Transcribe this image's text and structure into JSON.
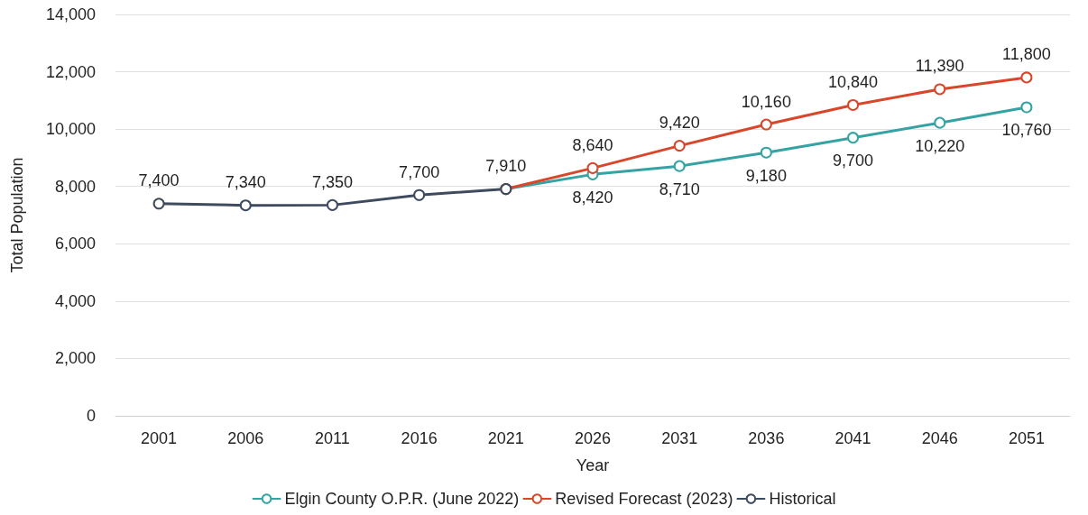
{
  "chart_data": {
    "type": "line",
    "xlabel": "Year",
    "ylabel": "Total Population",
    "categories": [
      "2001",
      "2006",
      "2011",
      "2016",
      "2021",
      "2026",
      "2031",
      "2036",
      "2041",
      "2046",
      "2051"
    ],
    "series": [
      {
        "name": "Elgin County O.P.R. (June 2022)",
        "color": "#35a3a3",
        "values": [
          null,
          null,
          null,
          null,
          7910,
          8420,
          8710,
          9180,
          9700,
          10220,
          10760
        ],
        "value_labels": [
          null,
          null,
          null,
          null,
          null,
          "8,420",
          "8,710",
          "9,180",
          "9,700",
          "10,220",
          "10,760"
        ]
      },
      {
        "name": "Revised Forecast (2023)",
        "color": "#d9472b",
        "values": [
          null,
          null,
          null,
          null,
          7910,
          8640,
          9420,
          10160,
          10840,
          11390,
          11800
        ],
        "value_labels": [
          null,
          null,
          null,
          null,
          null,
          "8,640",
          "9,420",
          "10,160",
          "10,840",
          "11,390",
          "11,800"
        ]
      },
      {
        "name": "Historical",
        "color": "#3e4a5e",
        "values": [
          7400,
          7340,
          7350,
          7700,
          7910,
          null,
          null,
          null,
          null,
          null,
          null
        ],
        "value_labels": [
          "7,400",
          "7,340",
          "7,350",
          "7,700",
          "7,910",
          null,
          null,
          null,
          null,
          null,
          null
        ]
      }
    ],
    "ylim": [
      0,
      14000
    ],
    "yticks": [
      {
        "value": 0,
        "label": "0"
      },
      {
        "value": 2000,
        "label": "2,000"
      },
      {
        "value": 4000,
        "label": "4,000"
      },
      {
        "value": 6000,
        "label": "6,000"
      },
      {
        "value": 8000,
        "label": "8,000"
      },
      {
        "value": 10000,
        "label": "10,000"
      },
      {
        "value": 12000,
        "label": "12,000"
      },
      {
        "value": 14000,
        "label": "14,000"
      }
    ],
    "grid": "y",
    "legend": "bottom",
    "marker": "circle",
    "line_style": "solid"
  }
}
